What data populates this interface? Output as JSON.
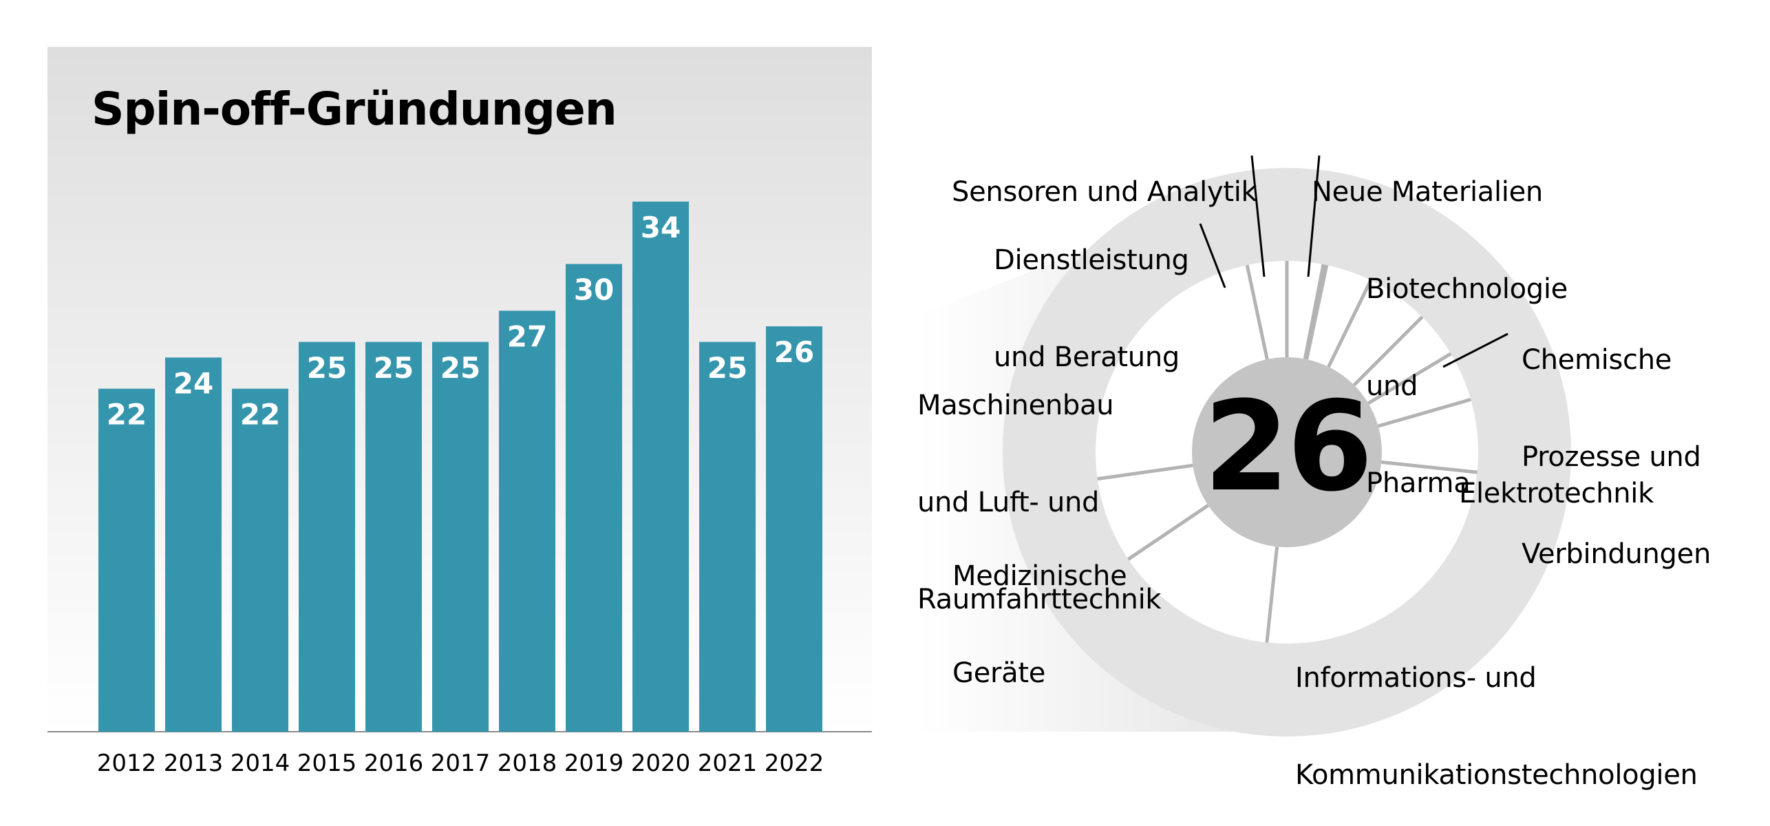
{
  "chart_data": [
    {
      "type": "bar",
      "title": "Spin-off-Gründungen",
      "categories": [
        "2012",
        "2013",
        "2014",
        "2015",
        "2016",
        "2017",
        "2018",
        "2019",
        "2020",
        "2021",
        "2022"
      ],
      "values": [
        22,
        24,
        22,
        25,
        25,
        25,
        27,
        30,
        34,
        25,
        26
      ],
      "ylim": [
        0,
        36
      ],
      "grid": false,
      "color": "#3595ad"
    },
    {
      "type": "pie",
      "variant": "donut",
      "center_value": "26",
      "categories": [
        "Sensoren und Analytik",
        "Neue Materialien",
        "Dienstleistung und Beratung",
        "Biotechnologie und Pharma",
        "Chemische Prozesse und Verbindungen",
        "Maschinenbau und Luft- und Raumfahrttechnik",
        "Elektrotechnik",
        "Medizinische Geräte",
        "Informations- und Kommunikationstechnologien"
      ],
      "colors": {
        "ring": "#e3e3e3",
        "center": "#c4c4c4",
        "divider": "#b3b3b3"
      }
    }
  ],
  "donut_labels": {
    "sensoren": [
      "Sensoren und Analytik"
    ],
    "materialien": [
      "Neue Materialien"
    ],
    "dienstleistung": [
      "Dienstleistung",
      "und Beratung"
    ],
    "biotech": [
      "Biotechnologie",
      "und",
      "Pharma"
    ],
    "chemie": [
      "Chemische",
      "Prozesse und",
      "Verbindungen"
    ],
    "maschinenbau": [
      "Maschinenbau",
      "und Luft- und",
      "Raumfahrttechnik"
    ],
    "elektro": [
      "Elektrotechnik"
    ],
    "medizin": [
      "Medizinische",
      "Geräte"
    ],
    "ikt": [
      "Informations- und",
      "Kommunikationstechnologien"
    ]
  }
}
